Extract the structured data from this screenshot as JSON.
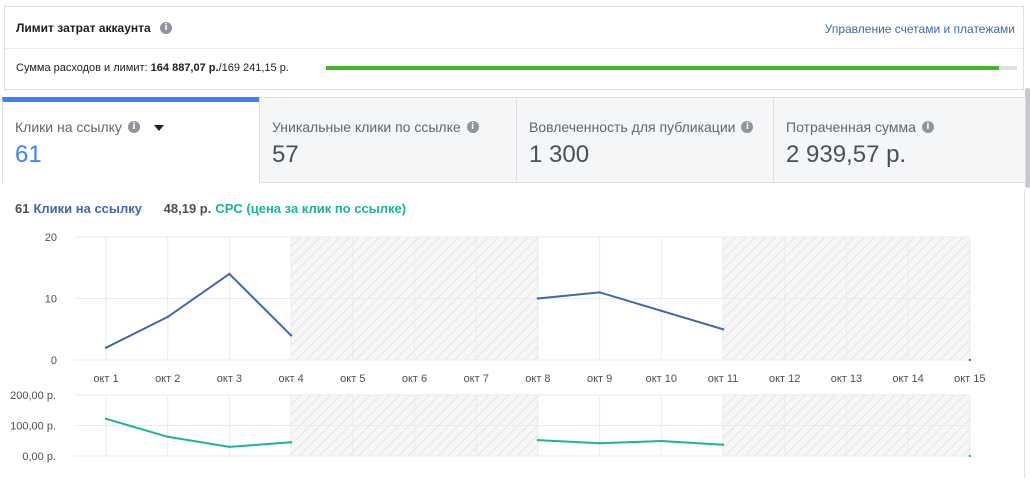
{
  "account": {
    "title": "Лимит затрат аккаунта",
    "manage_link": "Управление счетами и платежами",
    "spend_prefix": "Сумма расходов и лимит:",
    "spend_value": "164 887,07 р.",
    "spend_limit": "/169 241,15 р.",
    "spend_fraction": 0.9743
  },
  "tabs": [
    {
      "label": "Клики на ссылку",
      "value": "61",
      "active": true
    },
    {
      "label": "Уникальные клики по ссылке",
      "value": "57",
      "active": false
    },
    {
      "label": "Вовлеченность для публикации",
      "value": "1 300",
      "active": false
    },
    {
      "label": "Потраченная сумма",
      "value": "2 939,57 р.",
      "active": false
    }
  ],
  "legend": {
    "clicks_value": "61",
    "clicks_label": "Клики на ссылку",
    "cpc_value": "48,19 р.",
    "cpc_label": "CPC (цена за клик по ссылке)"
  },
  "colors": {
    "accent": "#4080ff",
    "clicks_line": "#4267b2",
    "cpc_line": "#1eb39a",
    "spend_bar": "#42b72a"
  },
  "chart_data": [
    {
      "type": "line",
      "x": [
        "окт 1",
        "окт 2",
        "окт 3",
        "окт 4",
        "окт 5",
        "окт 6",
        "окт 7",
        "окт 8",
        "окт 9",
        "окт 10",
        "окт 11",
        "окт 12",
        "окт 13",
        "окт 14",
        "окт 15"
      ],
      "series": [
        {
          "name": "Клики на ссылку",
          "values": [
            2,
            7,
            14,
            4,
            null,
            null,
            null,
            10,
            11,
            8,
            5,
            null,
            null,
            null,
            0
          ]
        }
      ],
      "yticks": [
        "0",
        "10",
        "20"
      ],
      "ylim": [
        0,
        20
      ],
      "no_data_ranges": [
        [
          "окт 4",
          "окт 8"
        ],
        [
          "окт 11",
          "окт 15"
        ]
      ],
      "grid": true
    },
    {
      "type": "line",
      "x": [
        "окт 1",
        "окт 2",
        "окт 3",
        "окт 4",
        "окт 5",
        "окт 6",
        "окт 7",
        "окт 8",
        "окт 9",
        "окт 10",
        "окт 11",
        "окт 12",
        "окт 13",
        "окт 14",
        "окт 15"
      ],
      "series": [
        {
          "name": "CPC (цена за клик по ссылке)",
          "values": [
            122,
            63,
            30,
            45,
            null,
            null,
            null,
            52,
            42,
            49,
            37,
            null,
            null,
            null,
            0
          ]
        }
      ],
      "yticks": [
        "0,00 р.",
        "100,00 р.",
        "200,00 р."
      ],
      "ytick_values": [
        0,
        100,
        200
      ],
      "ylim": [
        0,
        200
      ],
      "no_data_ranges": [
        [
          "окт 4",
          "окт 8"
        ],
        [
          "окт 11",
          "окт 15"
        ]
      ],
      "grid": true
    }
  ]
}
